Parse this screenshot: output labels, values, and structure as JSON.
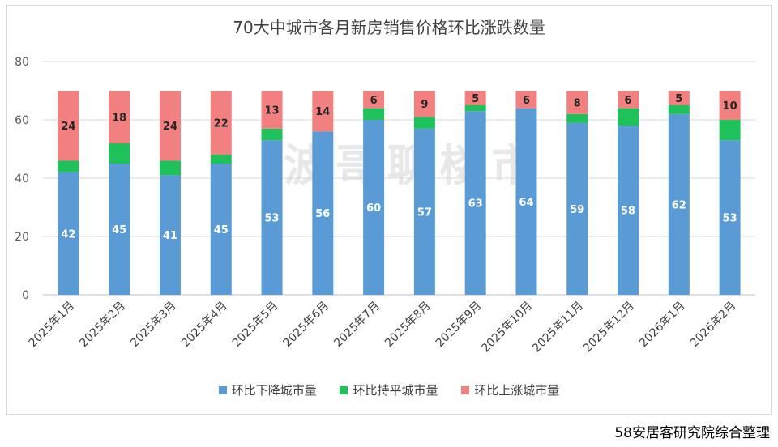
{
  "chart_data": {
    "type": "bar",
    "stacked": true,
    "title": "70大中城市各月新房销售价格环比涨跌数量",
    "watermark": "波哥聊楼市",
    "categories": [
      "2025年1月",
      "2025年2月",
      "2025年3月",
      "2025年4月",
      "2025年5月",
      "2025年6月",
      "2025年7月",
      "2025年8月",
      "2025年9月",
      "2025年10月",
      "2025年11月",
      "2025年12月",
      "2026年1月",
      "2026年2月"
    ],
    "series": [
      {
        "name": "环比下降城市量",
        "color": "#5b9bd5",
        "values": [
          42,
          45,
          41,
          45,
          53,
          56,
          60,
          57,
          63,
          64,
          59,
          58,
          62,
          53
        ],
        "labels": [
          "42",
          "45",
          "41",
          "45",
          "53",
          "56",
          "60",
          "57",
          "63",
          "64",
          "59",
          "58",
          "62",
          "53"
        ]
      },
      {
        "name": "环比持平城市量",
        "color": "#1ec15a",
        "values": [
          4,
          7,
          5,
          3,
          4,
          0,
          4,
          4,
          2,
          0,
          3,
          6,
          3,
          7
        ],
        "labels": [
          "",
          "",
          "",
          "",
          "",
          "",
          "",
          "",
          "",
          "",
          "",
          "",
          "",
          ""
        ]
      },
      {
        "name": "环比上涨城市量",
        "color": "#f28080",
        "values": [
          24,
          18,
          24,
          22,
          13,
          14,
          6,
          9,
          5,
          6,
          8,
          6,
          5,
          10
        ],
        "labels": [
          "24",
          "18",
          "24",
          "22",
          "13",
          "14",
          "6",
          "9",
          "5",
          "6",
          "8",
          "6",
          "5",
          "10"
        ]
      }
    ],
    "yticks": [
      "0",
      "20",
      "40",
      "60",
      "80"
    ],
    "ylim": [
      0,
      80
    ],
    "grid": true,
    "legend": "bottom",
    "source": "58安居客研究院综合整理"
  }
}
